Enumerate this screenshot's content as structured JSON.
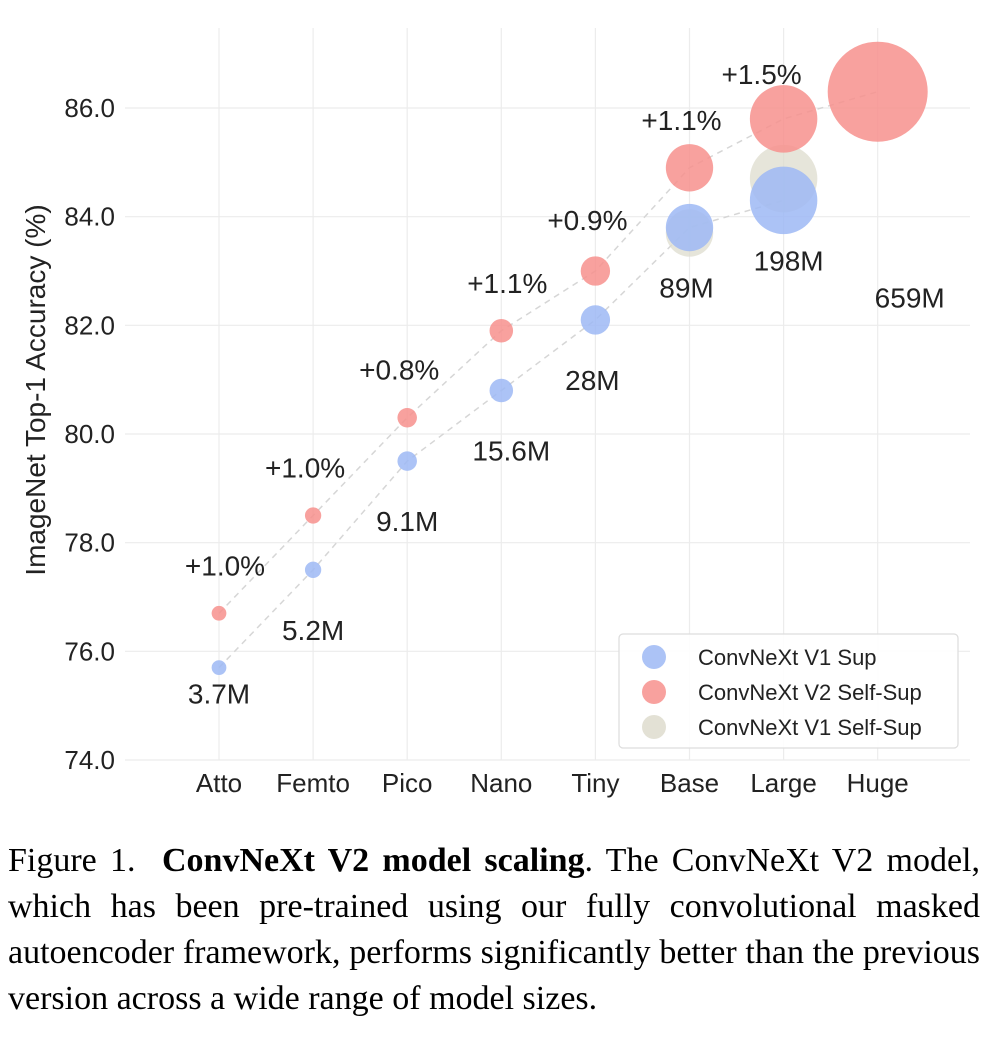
{
  "chart_data": {
    "type": "scatter",
    "categories": [
      "Atto",
      "Femto",
      "Pico",
      "Nano",
      "Tiny",
      "Base",
      "Large",
      "Huge"
    ],
    "ylabel": "ImageNet Top-1 Accuracy (%)",
    "ylim": [
      74.0,
      87.0
    ],
    "yticks": [
      "74.0",
      "76.0",
      "78.0",
      "80.0",
      "82.0",
      "84.0",
      "86.0"
    ],
    "grid": true,
    "legend_position": "bottom-right",
    "series": [
      {
        "name": "ConvNeXt V1 Sup",
        "color": "#9DB8F5",
        "values": [
          75.7,
          77.5,
          79.5,
          80.8,
          82.1,
          83.8,
          84.3,
          null
        ]
      },
      {
        "name": "ConvNeXt V2 Self-Sup",
        "color": "#F7918D",
        "values": [
          76.7,
          78.5,
          80.3,
          81.9,
          83.0,
          84.9,
          85.8,
          86.3
        ]
      },
      {
        "name": "ConvNeXt V1 Self-Sup",
        "color": "#DEDCCE",
        "values": [
          null,
          null,
          null,
          null,
          null,
          83.7,
          84.7,
          null
        ]
      }
    ],
    "model_sizes": [
      "3.7M",
      "5.2M",
      "9.1M",
      "15.6M",
      "28M",
      "89M",
      "198M",
      "659M"
    ],
    "params_millions": [
      3.7,
      5.2,
      9.1,
      15.6,
      28,
      89,
      198,
      659
    ],
    "gains": [
      "+1.0%",
      "+1.0%",
      "+0.8%",
      "+1.1%",
      "+0.9%",
      "+1.1%",
      "+1.5%",
      ""
    ]
  },
  "caption": {
    "prefix": "Figure 1.",
    "title": "ConvNeXt V2 model scaling",
    "body": ". The ConvNeXt V2 model, which has been pre-trained using our fully convolutional masked autoencoder framework, performs significantly better than the previous version across a wide range of model sizes."
  }
}
